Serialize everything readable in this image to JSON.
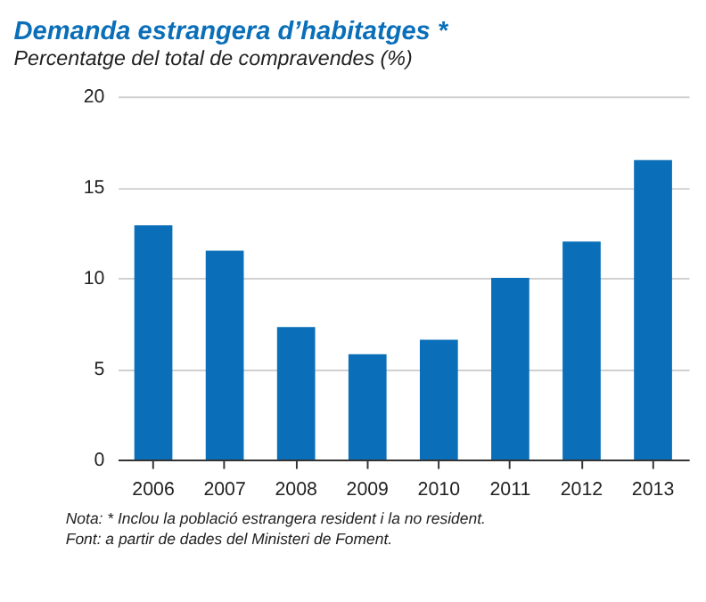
{
  "chart_data": {
    "type": "bar",
    "title": "Demanda estrangera d’habitatges *",
    "subtitle": "Percentatge del total de compravendes (%)",
    "categories": [
      "2006",
      "2007",
      "2008",
      "2009",
      "2010",
      "2011",
      "2012",
      "2013"
    ],
    "values": [
      12.9,
      11.5,
      7.3,
      5.8,
      6.6,
      10.0,
      12.0,
      16.5
    ],
    "color": "#0a6fb8",
    "ylim": [
      0,
      20
    ],
    "yticks": [
      0,
      5,
      10,
      15,
      20
    ],
    "grid": "y",
    "annotations": [
      "Nota: * Inclou la població estrangera resident i la no resident.",
      "Font: a partir de dades del Ministeri de Foment."
    ]
  }
}
